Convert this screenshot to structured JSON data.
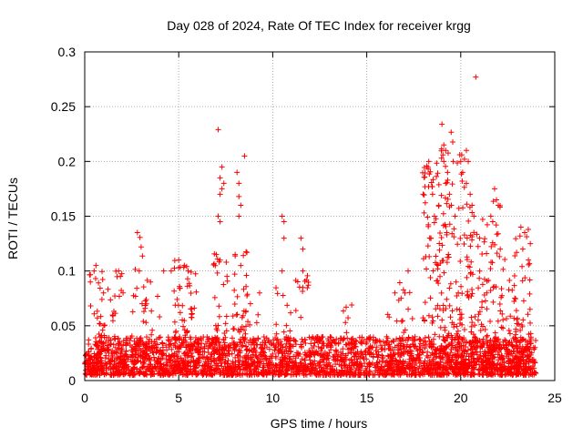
{
  "chart_data": {
    "type": "scatter",
    "title": "Day 028 of 2024, Rate Of TEC Index for receiver krgg",
    "xlabel": "GPS time / hours",
    "ylabel": "ROTI / TECUs",
    "xlim": [
      0,
      25
    ],
    "ylim": [
      0,
      0.3
    ],
    "x_ticks": [
      0,
      5,
      10,
      15,
      20,
      25
    ],
    "y_ticks": [
      0,
      0.05,
      0.1,
      0.15,
      0.2,
      0.25,
      0.3
    ],
    "x_tick_labels": [
      "0",
      "5",
      "10",
      "15",
      "20",
      "25"
    ],
    "y_tick_labels": [
      "0",
      "0.05",
      "0.1",
      "0.15",
      "0.2",
      "0.25",
      "0.3"
    ],
    "grid": true,
    "marker": "+",
    "color": "#ff0000",
    "outliers": [
      {
        "x": 0.3,
        "y": 0.09
      },
      {
        "x": 0.5,
        "y": 0.1
      },
      {
        "x": 0.6,
        "y": 0.105
      },
      {
        "x": 1.0,
        "y": 0.08
      },
      {
        "x": 1.8,
        "y": 0.1
      },
      {
        "x": 1.9,
        "y": 0.095
      },
      {
        "x": 2.8,
        "y": 0.135
      },
      {
        "x": 3.0,
        "y": 0.122
      },
      {
        "x": 2.9,
        "y": 0.1
      },
      {
        "x": 3.5,
        "y": 0.09
      },
      {
        "x": 4.2,
        "y": 0.1
      },
      {
        "x": 4.6,
        "y": 0.1
      },
      {
        "x": 5.0,
        "y": 0.11
      },
      {
        "x": 5.3,
        "y": 0.105
      },
      {
        "x": 5.5,
        "y": 0.1
      },
      {
        "x": 7.1,
        "y": 0.229
      },
      {
        "x": 7.3,
        "y": 0.195
      },
      {
        "x": 7.2,
        "y": 0.185
      },
      {
        "x": 7.4,
        "y": 0.18
      },
      {
        "x": 7.3,
        "y": 0.175
      },
      {
        "x": 7.2,
        "y": 0.17
      },
      {
        "x": 7.1,
        "y": 0.15
      },
      {
        "x": 7.2,
        "y": 0.145
      },
      {
        "x": 7.0,
        "y": 0.115
      },
      {
        "x": 7.2,
        "y": 0.11
      },
      {
        "x": 8.1,
        "y": 0.19
      },
      {
        "x": 8.2,
        "y": 0.18
      },
      {
        "x": 8.2,
        "y": 0.168
      },
      {
        "x": 8.3,
        "y": 0.16
      },
      {
        "x": 8.2,
        "y": 0.15
      },
      {
        "x": 8.5,
        "y": 0.205
      },
      {
        "x": 8.0,
        "y": 0.115
      },
      {
        "x": 8.3,
        "y": 0.105
      },
      {
        "x": 9.3,
        "y": 0.08
      },
      {
        "x": 10.5,
        "y": 0.15
      },
      {
        "x": 10.6,
        "y": 0.145
      },
      {
        "x": 10.6,
        "y": 0.13
      },
      {
        "x": 10.5,
        "y": 0.1
      },
      {
        "x": 11.5,
        "y": 0.13
      },
      {
        "x": 11.6,
        "y": 0.12
      },
      {
        "x": 11.6,
        "y": 0.1
      },
      {
        "x": 11.6,
        "y": 0.085
      },
      {
        "x": 14.2,
        "y": 0.069
      },
      {
        "x": 16.5,
        "y": 0.08
      },
      {
        "x": 17.2,
        "y": 0.1
      },
      {
        "x": 18.3,
        "y": 0.2
      },
      {
        "x": 18.5,
        "y": 0.17
      },
      {
        "x": 18.6,
        "y": 0.15
      },
      {
        "x": 18.4,
        "y": 0.13
      },
      {
        "x": 19.0,
        "y": 0.234
      },
      {
        "x": 19.1,
        "y": 0.215
      },
      {
        "x": 19.2,
        "y": 0.21
      },
      {
        "x": 19.1,
        "y": 0.2
      },
      {
        "x": 19.3,
        "y": 0.19
      },
      {
        "x": 19.2,
        "y": 0.18
      },
      {
        "x": 19.4,
        "y": 0.17
      },
      {
        "x": 19.6,
        "y": 0.2
      },
      {
        "x": 19.5,
        "y": 0.16
      },
      {
        "x": 19.7,
        "y": 0.15
      },
      {
        "x": 20.0,
        "y": 0.2
      },
      {
        "x": 20.1,
        "y": 0.19
      },
      {
        "x": 20.2,
        "y": 0.202
      },
      {
        "x": 20.3,
        "y": 0.21
      },
      {
        "x": 20.4,
        "y": 0.2
      },
      {
        "x": 20.3,
        "y": 0.18
      },
      {
        "x": 20.5,
        "y": 0.17
      },
      {
        "x": 20.6,
        "y": 0.16
      },
      {
        "x": 20.7,
        "y": 0.15
      },
      {
        "x": 20.8,
        "y": 0.277
      },
      {
        "x": 21.0,
        "y": 0.13
      },
      {
        "x": 21.6,
        "y": 0.15
      },
      {
        "x": 21.8,
        "y": 0.175
      },
      {
        "x": 21.9,
        "y": 0.165
      },
      {
        "x": 22.0,
        "y": 0.16
      },
      {
        "x": 21.7,
        "y": 0.145
      },
      {
        "x": 22.1,
        "y": 0.12
      },
      {
        "x": 23.2,
        "y": 0.14
      },
      {
        "x": 23.4,
        "y": 0.135
      },
      {
        "x": 23.3,
        "y": 0.12
      },
      {
        "x": 23.6,
        "y": 0.11
      },
      {
        "x": 23.7,
        "y": 0.125
      }
    ],
    "bursts": [
      {
        "x": 0.6,
        "top": 0.11,
        "n": 30
      },
      {
        "x": 1.2,
        "top": 0.085,
        "n": 25
      },
      {
        "x": 1.8,
        "top": 0.1,
        "n": 25
      },
      {
        "x": 2.9,
        "top": 0.135,
        "n": 35
      },
      {
        "x": 3.6,
        "top": 0.08,
        "n": 25
      },
      {
        "x": 5.2,
        "top": 0.11,
        "n": 50
      },
      {
        "x": 5.6,
        "top": 0.1,
        "n": 40
      },
      {
        "x": 7.2,
        "top": 0.12,
        "n": 45
      },
      {
        "x": 8.2,
        "top": 0.12,
        "n": 45
      },
      {
        "x": 8.8,
        "top": 0.08,
        "n": 25
      },
      {
        "x": 10.6,
        "top": 0.1,
        "n": 25
      },
      {
        "x": 11.6,
        "top": 0.1,
        "n": 25
      },
      {
        "x": 14.2,
        "top": 0.07,
        "n": 15
      },
      {
        "x": 16.5,
        "top": 0.08,
        "n": 20
      },
      {
        "x": 17.2,
        "top": 0.1,
        "n": 25
      },
      {
        "x": 18.4,
        "top": 0.2,
        "n": 80
      },
      {
        "x": 19.2,
        "top": 0.23,
        "n": 100
      },
      {
        "x": 20.2,
        "top": 0.21,
        "n": 100
      },
      {
        "x": 21.0,
        "top": 0.15,
        "n": 60
      },
      {
        "x": 21.8,
        "top": 0.17,
        "n": 70
      },
      {
        "x": 22.6,
        "top": 0.12,
        "n": 50
      },
      {
        "x": 23.3,
        "top": 0.14,
        "n": 60
      }
    ],
    "baseline": {
      "x_range": [
        0,
        24
      ],
      "typical_range": [
        0.005,
        0.04
      ],
      "n": 2600
    }
  }
}
